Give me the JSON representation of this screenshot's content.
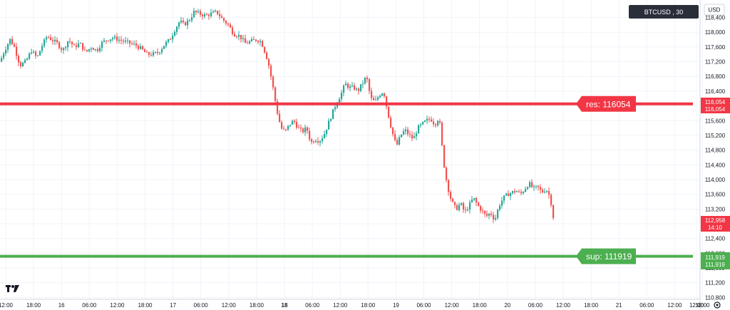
{
  "currency_button": "USD",
  "symbol_badge": "BTCUSD , 30",
  "settings_icon": "gear-icon",
  "logo": "TV",
  "colors": {
    "up": "#26a69a",
    "down": "#ef5350",
    "resistance": "#f23645",
    "support": "#4caf50",
    "price_badge": "#f23645",
    "symbol_badge_bg": "#2a2e39",
    "grid": "#f0f3fa",
    "axis": "#d1d4dc"
  },
  "chart_data": {
    "type": "candlestick",
    "title": "BTCUSD , 30",
    "x_axis_labels": [
      "12:00",
      "18:00",
      "16",
      "06:00",
      "12:00",
      "18:00",
      "17",
      "06:00",
      "12:00",
      "18:00",
      "18",
      "06:00",
      "12:00",
      "18:00",
      "19",
      "06:00",
      "12:00",
      "18:00",
      "20",
      "06:00",
      "12:00",
      "18:00",
      "21",
      "06:00",
      "12:00",
      "18:00",
      "12:00"
    ],
    "y_axis_labels": [
      "110,800",
      "111,200",
      "111,600",
      "112,000",
      "112,400",
      "112,800",
      "113,200",
      "113,600",
      "114,000",
      "114,400",
      "114,800",
      "115,200",
      "115,600",
      "116,000",
      "116,400",
      "116,800",
      "117,200",
      "117,600",
      "118,000",
      "118,400"
    ],
    "ylim": [
      110750,
      118700
    ],
    "horizontal_lines": [
      {
        "name": "res",
        "label": "res: 116054",
        "value": 116054,
        "axis_label": "116,054"
      },
      {
        "name": "sup",
        "label": "sup: 111919",
        "value": 111919,
        "axis_label": "111,919"
      }
    ],
    "last_price": {
      "value": 112958,
      "label": "112,958",
      "countdown": "14:10"
    },
    "close_path": [
      [
        0,
        117200
      ],
      [
        6,
        117500
      ],
      [
        14,
        117800
      ],
      [
        20,
        117600
      ],
      [
        28,
        117100
      ],
      [
        36,
        117200
      ],
      [
        44,
        117500
      ],
      [
        52,
        117300
      ],
      [
        58,
        117600
      ],
      [
        66,
        117900
      ],
      [
        72,
        117800
      ],
      [
        80,
        117700
      ],
      [
        88,
        117500
      ],
      [
        96,
        117800
      ],
      [
        104,
        117600
      ],
      [
        112,
        117700
      ],
      [
        120,
        117450
      ],
      [
        128,
        117600
      ],
      [
        136,
        117500
      ],
      [
        142,
        117700
      ],
      [
        150,
        117800
      ],
      [
        158,
        117850
      ],
      [
        166,
        117800
      ],
      [
        174,
        117750
      ],
      [
        182,
        117700
      ],
      [
        190,
        117650
      ],
      [
        198,
        117550
      ],
      [
        206,
        117400
      ],
      [
        214,
        117400
      ],
      [
        222,
        117450
      ],
      [
        230,
        117650
      ],
      [
        238,
        117800
      ],
      [
        246,
        118100
      ],
      [
        252,
        118300
      ],
      [
        258,
        118200
      ],
      [
        266,
        118350
      ],
      [
        272,
        118550
      ],
      [
        280,
        118500
      ],
      [
        288,
        118450
      ],
      [
        296,
        118500
      ],
      [
        304,
        118550
      ],
      [
        312,
        118350
      ],
      [
        320,
        118200
      ],
      [
        328,
        117950
      ],
      [
        336,
        117900
      ],
      [
        344,
        117700
      ],
      [
        352,
        117750
      ],
      [
        360,
        117800
      ],
      [
        366,
        117750
      ],
      [
        370,
        117550
      ],
      [
        376,
        117200
      ],
      [
        382,
        116600
      ],
      [
        388,
        115900
      ],
      [
        394,
        115400
      ],
      [
        400,
        115300
      ],
      [
        406,
        115500
      ],
      [
        412,
        115600
      ],
      [
        418,
        115400
      ],
      [
        424,
        115300
      ],
      [
        430,
        115400
      ],
      [
        436,
        115000
      ],
      [
        442,
        115100
      ],
      [
        448,
        115050
      ],
      [
        454,
        115200
      ],
      [
        460,
        115500
      ],
      [
        466,
        115800
      ],
      [
        472,
        116100
      ],
      [
        478,
        116300
      ],
      [
        484,
        116600
      ],
      [
        490,
        116500
      ],
      [
        496,
        116500
      ],
      [
        502,
        116400
      ],
      [
        508,
        116600
      ],
      [
        514,
        116800
      ],
      [
        520,
        116200
      ],
      [
        526,
        116100
      ],
      [
        532,
        116300
      ],
      [
        538,
        116400
      ],
      [
        544,
        115800
      ],
      [
        550,
        115300
      ],
      [
        556,
        114900
      ],
      [
        562,
        115200
      ],
      [
        568,
        115350
      ],
      [
        574,
        115200
      ],
      [
        580,
        115100
      ],
      [
        586,
        115400
      ],
      [
        592,
        115500
      ],
      [
        598,
        115600
      ],
      [
        604,
        115650
      ],
      [
        610,
        115500
      ],
      [
        616,
        115700
      ],
      [
        620,
        114900
      ],
      [
        624,
        114200
      ],
      [
        628,
        113800
      ],
      [
        632,
        113500
      ],
      [
        636,
        113300
      ],
      [
        640,
        113200
      ],
      [
        646,
        113350
      ],
      [
        652,
        113100
      ],
      [
        658,
        113300
      ],
      [
        664,
        113500
      ],
      [
        670,
        113300
      ],
      [
        676,
        113150
      ],
      [
        682,
        113000
      ],
      [
        688,
        113100
      ],
      [
        694,
        112900
      ],
      [
        700,
        113300
      ],
      [
        706,
        113500
      ],
      [
        712,
        113600
      ],
      [
        718,
        113650
      ],
      [
        724,
        113700
      ],
      [
        730,
        113600
      ],
      [
        736,
        113750
      ],
      [
        742,
        113900
      ],
      [
        748,
        113750
      ],
      [
        754,
        113800
      ],
      [
        760,
        113650
      ],
      [
        766,
        113750
      ],
      [
        772,
        113500
      ],
      [
        776,
        112958
      ]
    ]
  }
}
